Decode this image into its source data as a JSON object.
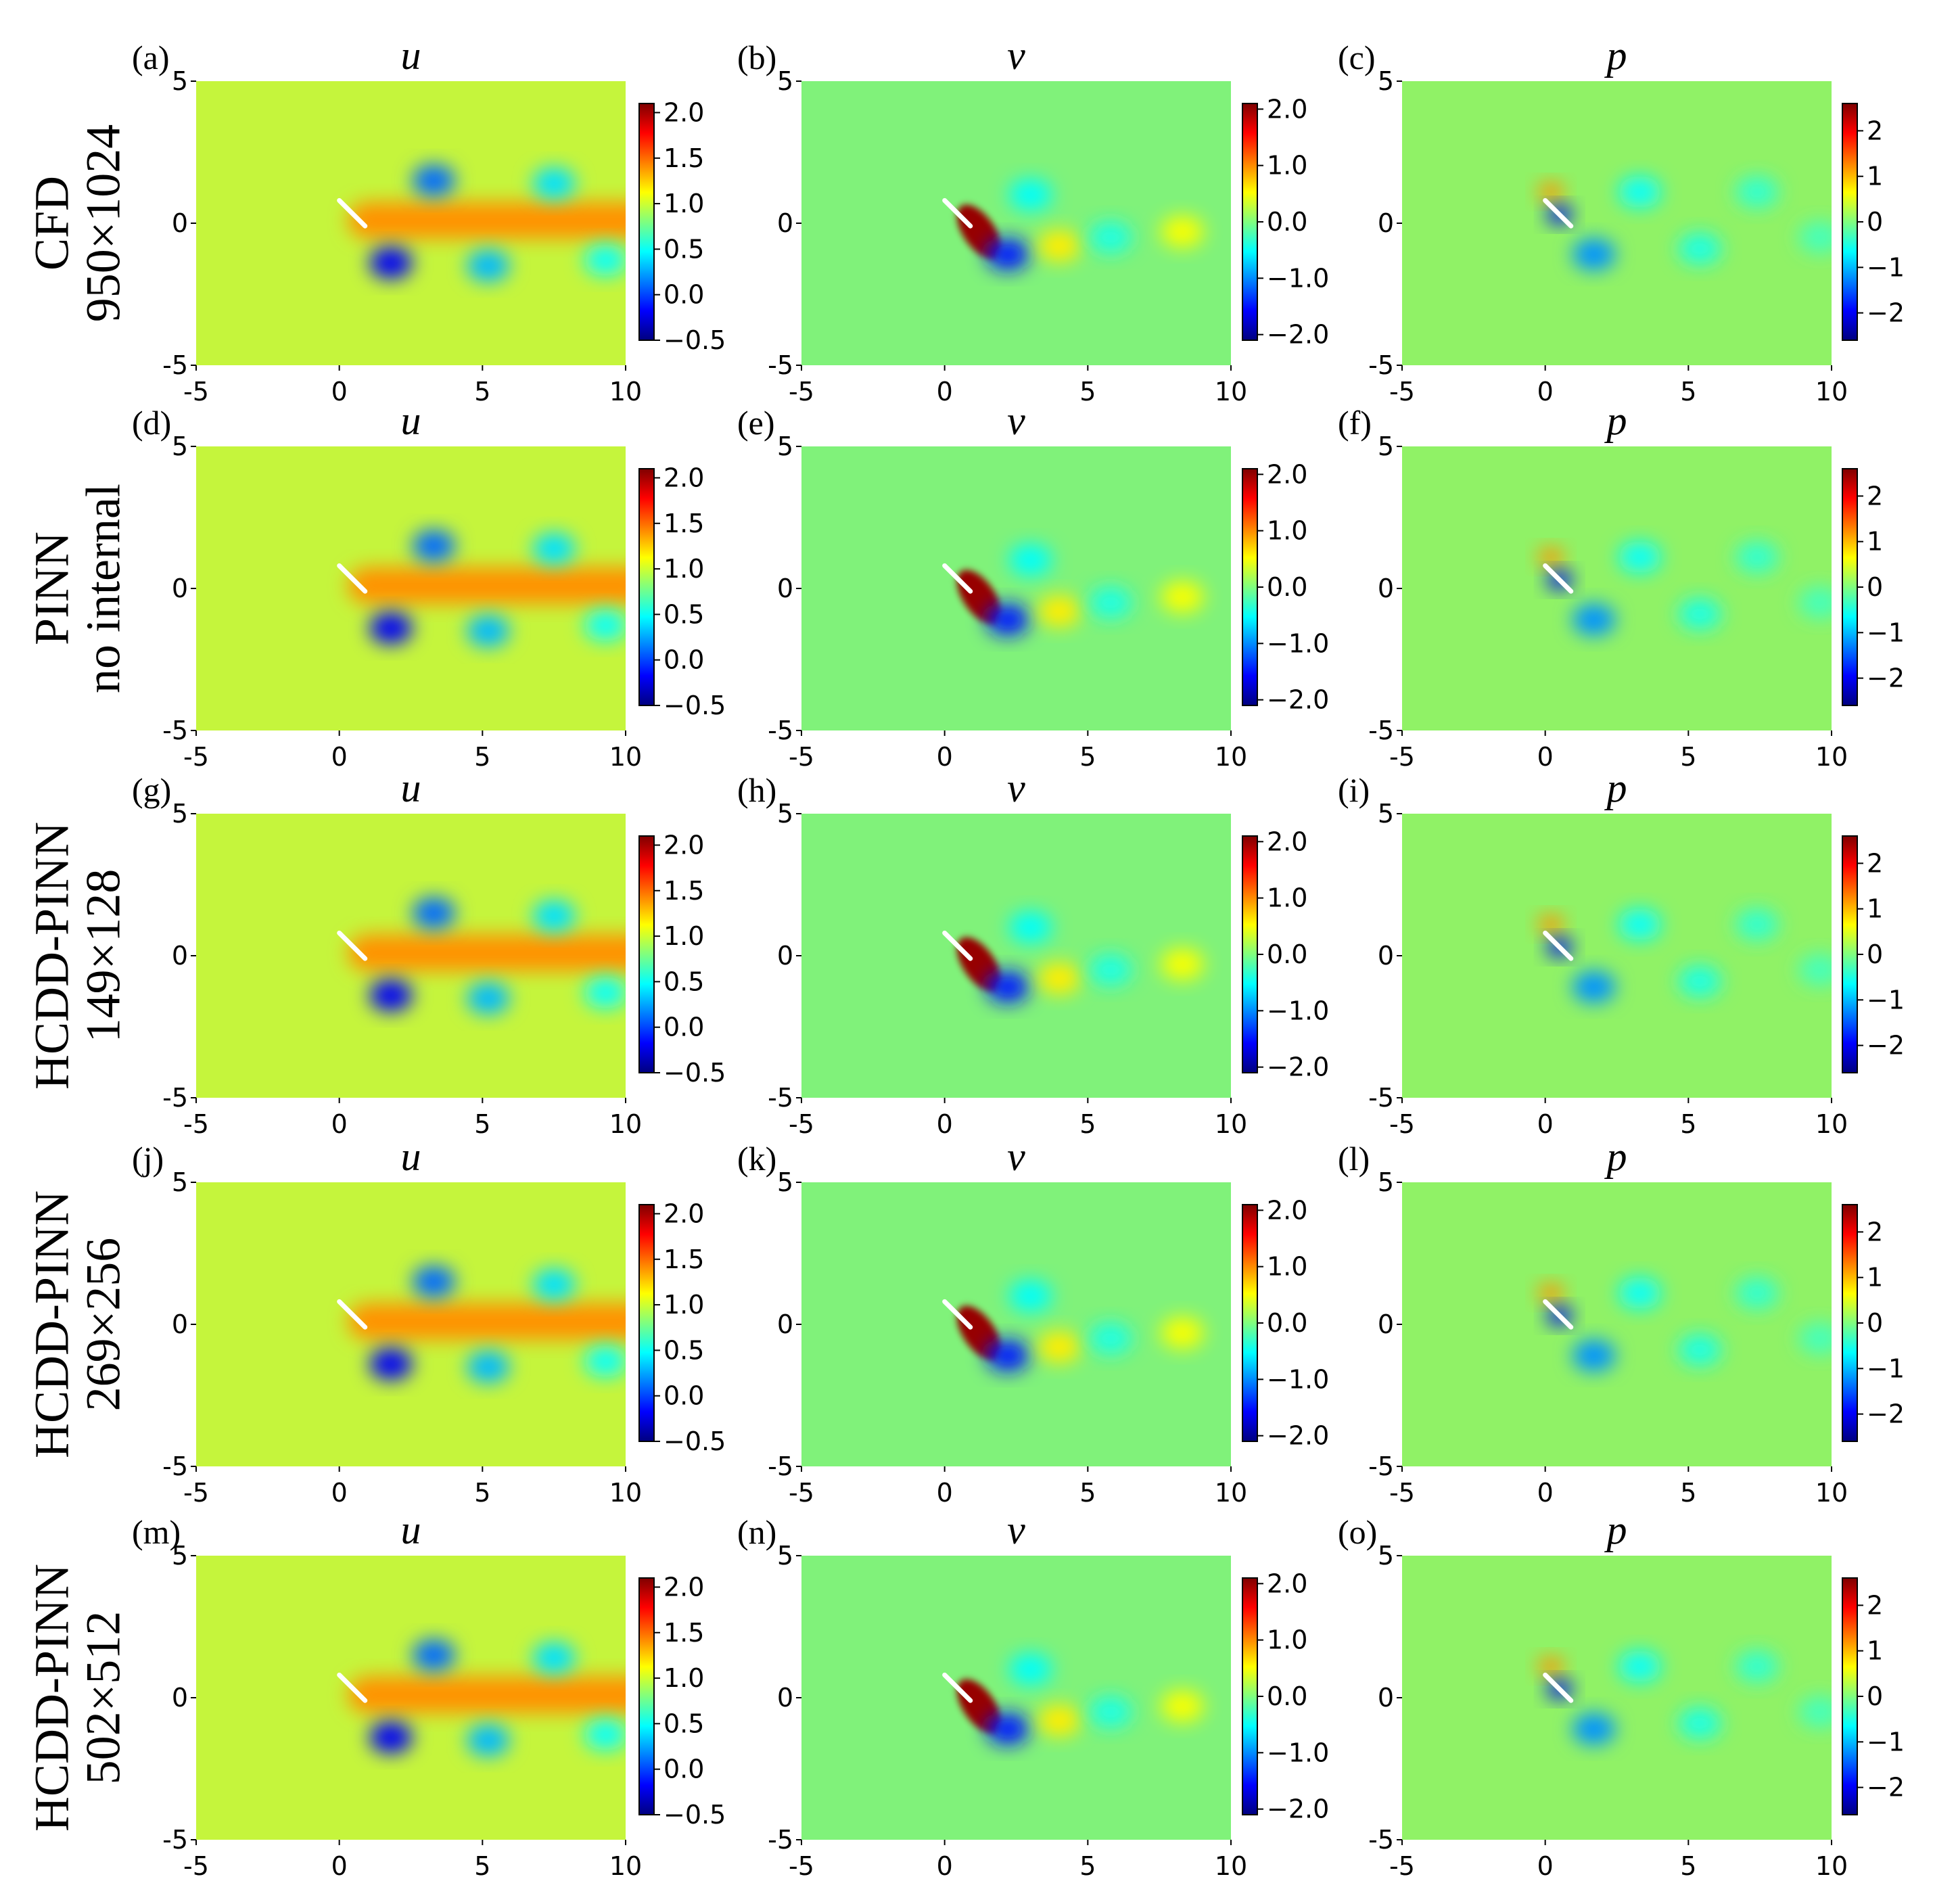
{
  "colormap": [
    "#00007f",
    "#0000ff",
    "#007fff",
    "#00ffff",
    "#7fff7f",
    "#ffff00",
    "#ff7f00",
    "#ff0000",
    "#7f0000"
  ],
  "background_colors": {
    "u": "#c5f53c",
    "v": "#80f27a",
    "p": "#90f266"
  },
  "rows": [
    {
      "id": "cfd",
      "label_line1": "CFD",
      "label_line2": "950×1024",
      "panel_labels": [
        "(a)",
        "(b)",
        "(c)"
      ]
    },
    {
      "id": "pinn",
      "label_line1": "PINN",
      "label_line2": "no internal",
      "panel_labels": [
        "(d)",
        "(e)",
        "(f)"
      ]
    },
    {
      "id": "hcdd128",
      "label_line1": "HCDD-PINN",
      "label_line2": "149×128",
      "panel_labels": [
        "(g)",
        "(h)",
        "(i)"
      ]
    },
    {
      "id": "hcdd256",
      "label_line1": "HCDD-PINN",
      "label_line2": "269×256",
      "panel_labels": [
        "(j)",
        "(k)",
        "(l)"
      ]
    },
    {
      "id": "hcdd512",
      "label_line1": "HCDD-PINN",
      "label_line2": "502×512",
      "panel_labels": [
        "(m)",
        "(n)",
        "(o)"
      ]
    }
  ],
  "chart_data": {
    "type": "heatmap",
    "layout": "5 rows × 3 columns of 2D field contour plots",
    "columns": [
      {
        "variable": "u",
        "title": "u",
        "cbar_range": [
          -0.5,
          2.1
        ],
        "cbar_ticks": [
          -0.5,
          0.0,
          0.5,
          1.0,
          1.5,
          2.0
        ],
        "cbar_tick_labels": [
          "−0.5",
          "0.0",
          "0.5",
          "1.0",
          "1.5",
          "2.0"
        ]
      },
      {
        "variable": "v",
        "title": "v",
        "cbar_range": [
          -2.1,
          2.1
        ],
        "cbar_ticks": [
          -2.0,
          -1.0,
          0.0,
          1.0,
          2.0
        ],
        "cbar_tick_labels": [
          "−2.0",
          "−1.0",
          "0.0",
          "1.0",
          "2.0"
        ]
      },
      {
        "variable": "p",
        "title": "p",
        "cbar_range": [
          -2.6,
          2.6
        ],
        "cbar_ticks": [
          -2,
          -1,
          0,
          1,
          2
        ],
        "cbar_tick_labels": [
          "−2",
          "−1",
          "0",
          "1",
          "2"
        ]
      }
    ],
    "x_range": [
      -5,
      10
    ],
    "y_range": [
      -5,
      5
    ],
    "x_ticks": [
      -5,
      0,
      5,
      10
    ],
    "x_tick_labels": [
      "-5",
      "0",
      "5",
      "10"
    ],
    "y_ticks": [
      -5,
      0,
      5
    ],
    "y_tick_labels": [
      "-5",
      "0",
      "5"
    ],
    "airfoil": {
      "leading_edge": [
        0.0,
        0.8
      ],
      "trailing_edge": [
        0.9,
        -0.1
      ]
    },
    "field_features": {
      "u": [
        {
          "kind": "wake",
          "x0": 0.3,
          "x1": 10,
          "y": 0.1,
          "width": 1.3,
          "value": 1.4
        },
        {
          "kind": "vortex",
          "x": 3.3,
          "y": 1.5,
          "value": 0.1
        },
        {
          "kind": "vortex",
          "x": 1.8,
          "y": -1.4,
          "value": -0.2
        },
        {
          "kind": "vortex",
          "x": 5.2,
          "y": -1.5,
          "value": 0.3
        },
        {
          "kind": "vortex",
          "x": 7.5,
          "y": 1.4,
          "value": 0.4
        },
        {
          "kind": "vortex",
          "x": 9.3,
          "y": -1.3,
          "value": 0.5
        }
      ],
      "v": [
        {
          "kind": "streak",
          "x": 1.2,
          "y": -0.3,
          "value": 2.0
        },
        {
          "kind": "vortex",
          "x": 2.2,
          "y": -1.1,
          "value": -1.5
        },
        {
          "kind": "vortex",
          "x": 3.0,
          "y": 1.0,
          "value": -0.5
        },
        {
          "kind": "vortex",
          "x": 4.0,
          "y": -0.8,
          "value": 0.6
        },
        {
          "kind": "vortex",
          "x": 5.8,
          "y": -0.5,
          "value": -0.4
        },
        {
          "kind": "vortex",
          "x": 8.3,
          "y": -0.3,
          "value": 0.5
        }
      ],
      "p": [
        {
          "kind": "stagnation",
          "x": 0.2,
          "y": 1.1,
          "value": 1.2
        },
        {
          "kind": "suction",
          "x": 0.5,
          "y": 0.3,
          "value": -2.0
        },
        {
          "kind": "vortex",
          "x": 1.7,
          "y": -1.1,
          "value": -1.2
        },
        {
          "kind": "vortex",
          "x": 3.3,
          "y": 1.1,
          "value": -0.6
        },
        {
          "kind": "vortex",
          "x": 5.4,
          "y": -0.9,
          "value": -0.5
        },
        {
          "kind": "vortex",
          "x": 7.4,
          "y": 1.1,
          "value": -0.4
        },
        {
          "kind": "vortex",
          "x": 9.6,
          "y": -0.5,
          "value": -0.3
        }
      ]
    }
  }
}
